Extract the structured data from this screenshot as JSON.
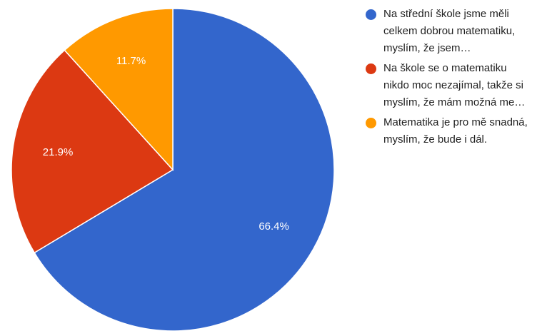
{
  "chart_data": {
    "type": "pie",
    "categories": [
      "Na střední škole jsme měli celkem dobrou matematiku, myslím, že jsem…",
      "Na škole se o matematiku nikdo moc nezajímal, takže si myslím, že mám možná me…",
      "Matematika je pro mě snadná, myslím, že bude i dál."
    ],
    "values": [
      66.4,
      21.9,
      11.7
    ],
    "value_labels": [
      "66.4%",
      "21.9%",
      "11.7%"
    ],
    "colors": [
      "#3366cc",
      "#dc3912",
      "#ff9900"
    ],
    "legend": "right"
  }
}
